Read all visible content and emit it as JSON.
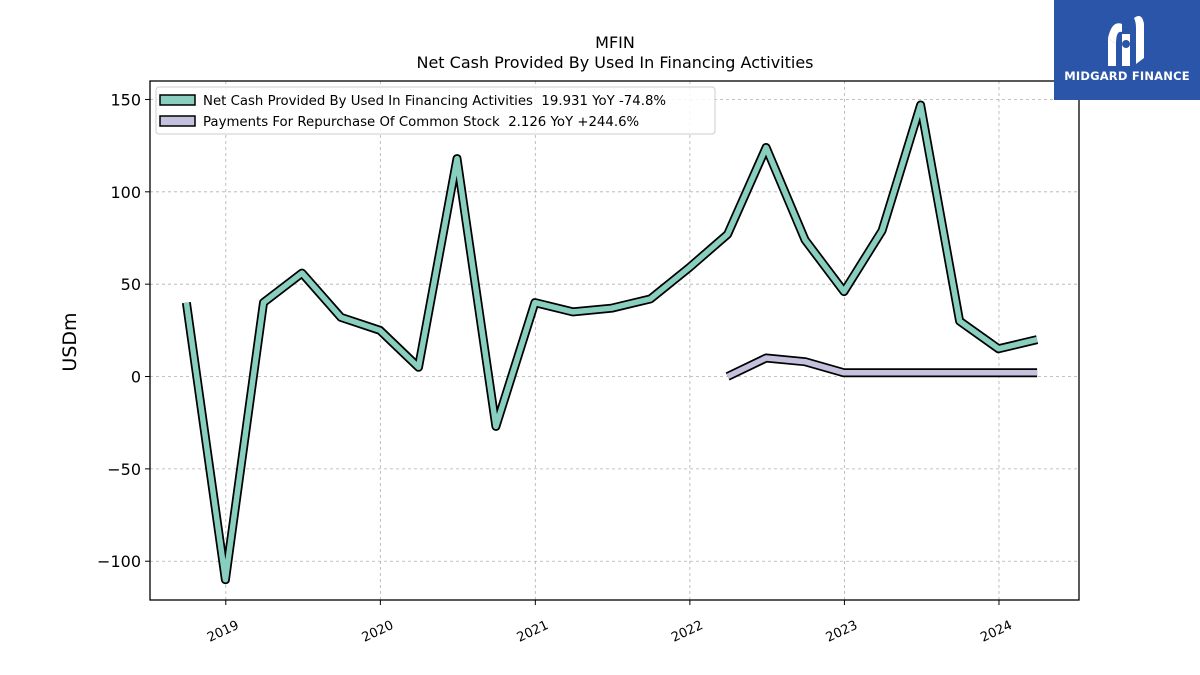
{
  "chart_data": {
    "type": "line",
    "title": "MFIN",
    "subtitle": "Net Cash Provided By Used In Financing Activities",
    "xlabel": "",
    "ylabel": "USDm",
    "x_ticks": [
      "2019",
      "2020",
      "2021",
      "2022",
      "2023",
      "2024"
    ],
    "y_ticks": [
      150,
      100,
      50,
      0,
      -50,
      -100
    ],
    "y_tick_labels": [
      "150",
      "100",
      "50",
      "0",
      "−50",
      "−100"
    ],
    "xlim": [
      "2018-07-06",
      "2024-07-08"
    ],
    "ylim": [
      -121,
      160
    ],
    "grid": true,
    "legend_position": "top-left",
    "series": [
      {
        "name": "Net Cash Provided By Used In Financing Activities",
        "legend_label": "Net Cash Provided By Used In Financing Activities  19.931 YoY -74.8%",
        "color": "#88cfc0",
        "points": [
          [
            "2018-09-30",
            40
          ],
          [
            "2018-12-31",
            -110
          ],
          [
            "2019-03-31",
            40
          ],
          [
            "2019-06-30",
            56
          ],
          [
            "2019-09-30",
            32
          ],
          [
            "2019-12-31",
            25
          ],
          [
            "2020-03-31",
            5
          ],
          [
            "2020-06-30",
            118
          ],
          [
            "2020-09-30",
            -27
          ],
          [
            "2020-12-31",
            40
          ],
          [
            "2021-03-31",
            35
          ],
          [
            "2021-06-30",
            37
          ],
          [
            "2021-09-30",
            42
          ],
          [
            "2021-12-31",
            59
          ],
          [
            "2022-03-31",
            77
          ],
          [
            "2022-06-30",
            124
          ],
          [
            "2022-09-30",
            74
          ],
          [
            "2022-12-31",
            46
          ],
          [
            "2023-03-31",
            79
          ],
          [
            "2023-06-30",
            147
          ],
          [
            "2023-09-30",
            30
          ],
          [
            "2023-12-31",
            15
          ],
          [
            "2024-03-31",
            20
          ]
        ]
      },
      {
        "name": "Payments For Repurchase Of Common Stock",
        "legend_label": "Payments For Repurchase Of Common Stock  2.126 YoY +244.6%",
        "color": "#c3c1dd",
        "points": [
          [
            "2022-03-31",
            0
          ],
          [
            "2022-06-30",
            10
          ],
          [
            "2022-09-30",
            8
          ],
          [
            "2022-12-31",
            2
          ],
          [
            "2023-03-31",
            2
          ],
          [
            "2023-06-30",
            2
          ],
          [
            "2023-09-30",
            2
          ],
          [
            "2023-12-31",
            2
          ],
          [
            "2024-03-31",
            2
          ]
        ]
      }
    ]
  },
  "logo": {
    "text": "MIDGARD FINANCE",
    "background": "#2a55a8"
  }
}
